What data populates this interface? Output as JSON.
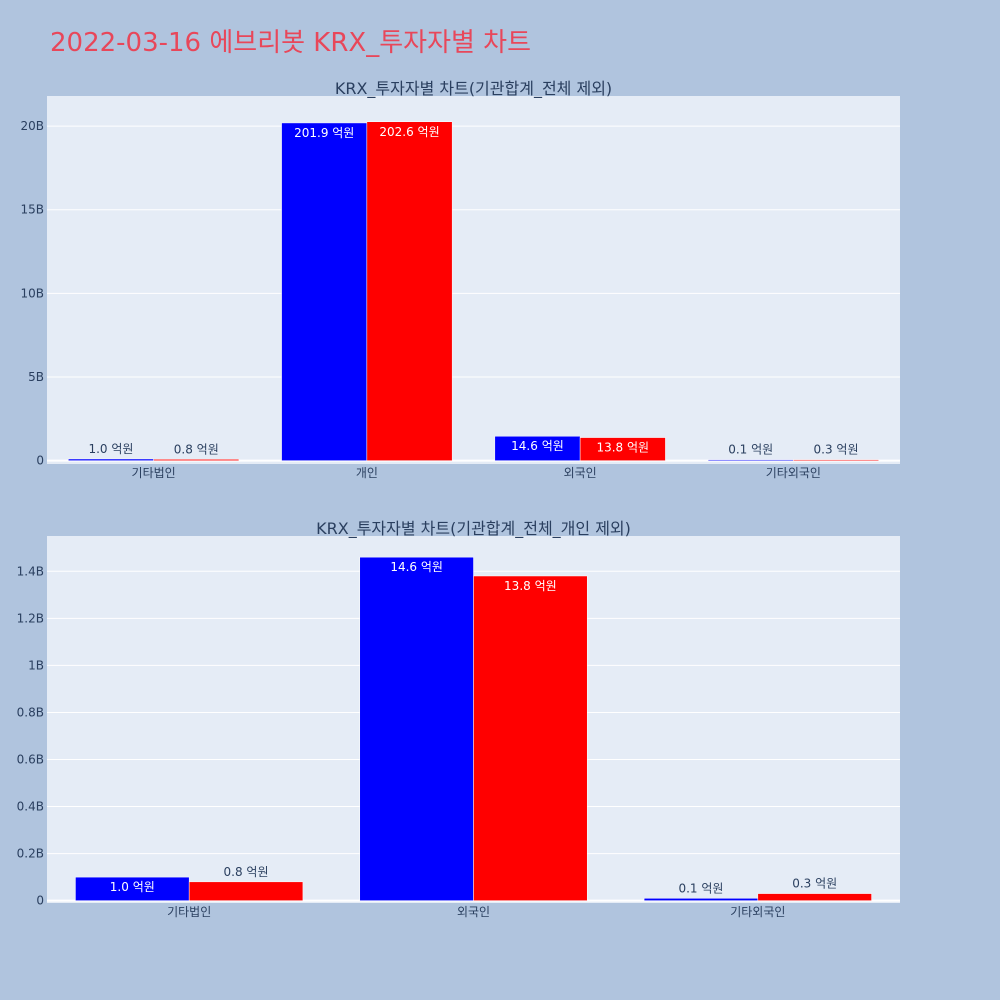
{
  "page": {
    "title": "2022-03-16 에브리봇 KRX_투자자별 차트"
  },
  "colors": {
    "background": "#b0c4de",
    "plot_bg": "#e5ecf6",
    "title": "#e8475a",
    "text": "#2a3f5f",
    "series_a": "#0000ff",
    "series_b": "#ff0000"
  },
  "chart_data": [
    {
      "type": "bar",
      "title": "KRX_투자자별 차트(기관합계_전체 제외)",
      "categories": [
        "기타법인",
        "개인",
        "외국인",
        "기타외국인"
      ],
      "series": [
        {
          "values": [
            100000000,
            20190000000,
            1460000000,
            10000000
          ],
          "labels": [
            "1.0 억원",
            "201.9 억원",
            "14.6 억원",
            "0.1 억원"
          ],
          "color": "#0000ff"
        },
        {
          "values": [
            80000000,
            20260000000,
            1380000000,
            30000000
          ],
          "labels": [
            "0.8 억원",
            "202.6 억원",
            "13.8 억원",
            "0.3 억원"
          ],
          "color": "#ff0000"
        }
      ],
      "ylim": [
        -200000000,
        21800000000
      ],
      "yticks": [
        0,
        5000000000,
        10000000000,
        15000000000,
        20000000000
      ],
      "ytick_labels": [
        "0",
        "5B",
        "10B",
        "15B",
        "20B"
      ],
      "grid": true
    },
    {
      "type": "bar",
      "title": "KRX_투자자별 차트(기관합계_전체_개인 제외)",
      "categories": [
        "기타법인",
        "외국인",
        "기타외국인"
      ],
      "series": [
        {
          "values": [
            100000000,
            1460000000,
            10000000
          ],
          "labels": [
            "1.0 억원",
            "14.6 억원",
            "0.1 억원"
          ],
          "color": "#0000ff"
        },
        {
          "values": [
            80000000,
            1380000000,
            30000000
          ],
          "labels": [
            "0.8 억원",
            "13.8 억원",
            "0.3 억원"
          ],
          "color": "#ff0000"
        }
      ],
      "ylim": [
        -10000000,
        1550000000
      ],
      "yticks": [
        0,
        200000000,
        400000000,
        600000000,
        800000000,
        1000000000,
        1200000000,
        1400000000
      ],
      "ytick_labels": [
        "0",
        "0.2B",
        "0.4B",
        "0.6B",
        "0.8B",
        "1B",
        "1.2B",
        "1.4B"
      ],
      "grid": true
    }
  ]
}
